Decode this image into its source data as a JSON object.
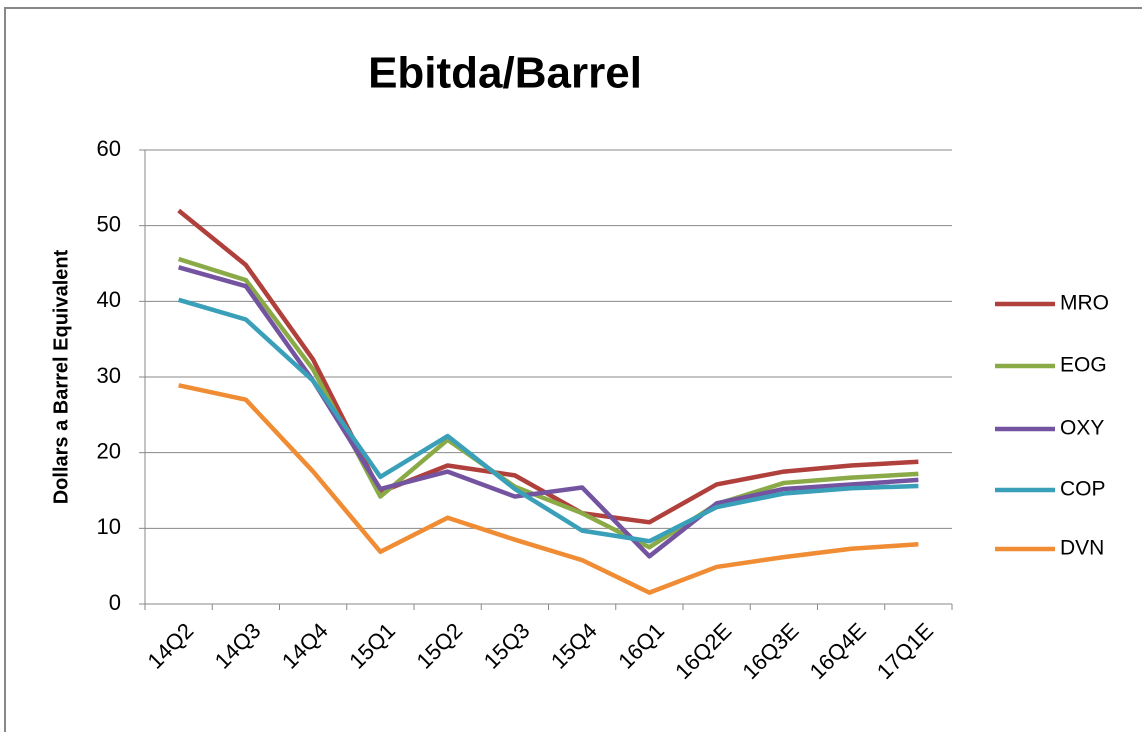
{
  "chart_data": {
    "type": "line",
    "title": "Ebitda/Barrel",
    "y_label": "Dollars a Barrel Equivalent",
    "categories": [
      "14Q2",
      "14Q3",
      "14Q4",
      "15Q1",
      "15Q2",
      "15Q3",
      "15Q4",
      "16Q1",
      "16Q2E",
      "16Q3E",
      "16Q4E",
      "17Q1E"
    ],
    "series": [
      {
        "name": "MRO",
        "color": "#b0403c",
        "values": [
          52,
          44.8,
          32.3,
          14.8,
          18.3,
          17,
          12,
          10.8,
          15.8,
          17.5,
          18.3,
          18.8
        ]
      },
      {
        "name": "EOG",
        "color": "#8aaa48",
        "values": [
          45.6,
          42.8,
          31,
          14.2,
          21.7,
          15.5,
          12,
          7.5,
          13.2,
          16,
          16.7,
          17.2
        ]
      },
      {
        "name": "OXY",
        "color": "#7454a0",
        "values": [
          44.5,
          42,
          29.5,
          15.2,
          17.5,
          14.2,
          15.4,
          6.3,
          13.3,
          15.2,
          15.8,
          16.4
        ]
      },
      {
        "name": "COP",
        "color": "#3a9fb8",
        "values": [
          40.2,
          37.6,
          29.5,
          16.8,
          22.2,
          15.2,
          9.7,
          8.3,
          12.8,
          14.6,
          15.3,
          15.6
        ]
      },
      {
        "name": "DVN",
        "color": "#f08c34",
        "values": [
          28.9,
          27,
          17.5,
          6.9,
          11.4,
          8.5,
          5.8,
          1.5,
          4.9,
          6.2,
          7.3,
          7.9
        ]
      }
    ],
    "ylim": [
      0,
      60
    ],
    "yticks": [
      0,
      10,
      20,
      30,
      40,
      50,
      60
    ],
    "grid": true,
    "legend": "right"
  }
}
